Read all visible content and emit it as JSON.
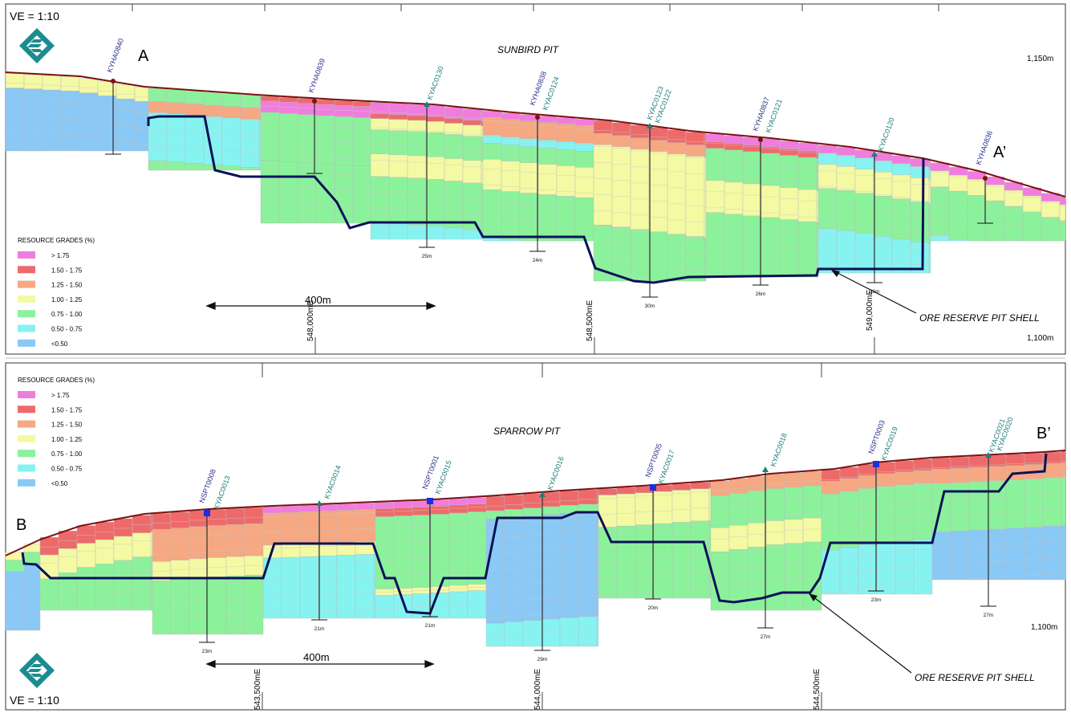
{
  "ve_label": "VE = 1:10",
  "colors": {
    "gt_1_75": "#f07ddd",
    "g_1_50_1_75": "#ee6a6a",
    "g_1_25_1_50": "#f5a882",
    "g_1_00_1_25": "#f4f9a3",
    "g_0_75_1_00": "#8bf29b",
    "g_0_50_0_75": "#86f3f1",
    "lt_0_50": "#8ac8f5",
    "topo": "#7a1212",
    "shell": "#0b1158",
    "drill_green": "#1a7f7a",
    "drill_blue": "#2a2f8c"
  },
  "legend": {
    "title": "RESOURCE GRADES (%)",
    "items": [
      {
        "label": "> 1.75",
        "color_key": "gt_1_75"
      },
      {
        "label": "1.50 - 1.75",
        "color_key": "g_1_50_1_75"
      },
      {
        "label": "1.25 - 1.50",
        "color_key": "g_1_25_1_50"
      },
      {
        "label": "1.00 - 1.25",
        "color_key": "g_1_00_1_25"
      },
      {
        "label": "0.75 - 1.00",
        "color_key": "g_0_75_1_00"
      },
      {
        "label": "0.50 - 0.75",
        "color_key": "g_0_50_0_75"
      },
      {
        "label": "<0.50",
        "color_key": "lt_0_50"
      }
    ]
  },
  "top": {
    "pit_title": "SUNBIRD PIT",
    "label_a": "A",
    "label_a_prime": "A’",
    "elev_upper": "1,150m",
    "elev_lower": "1,100m",
    "scale": "400m",
    "eastings": [
      "548,000mE",
      "548,500mE",
      "549,000mE"
    ],
    "shell_label": "ORE RESERVE PIT SHELL",
    "holes": [
      {
        "name": "KYHA0840",
        "depth": "",
        "type": "rab"
      },
      {
        "name": "KYHA0839",
        "depth": "",
        "type": "rab"
      },
      {
        "name": "KYAC0130",
        "depth": "25m",
        "type": "ac"
      },
      {
        "name": "KYHA0838",
        "depth": "24m",
        "type": "rab"
      },
      {
        "name": "KYAC0124",
        "depth": "",
        "type": "ac"
      },
      {
        "name": "KYAC0123",
        "depth": "30m",
        "type": "ac"
      },
      {
        "name": "KYAC0122",
        "depth": "",
        "type": "ac"
      },
      {
        "name": "KYHA0837",
        "depth": "26m",
        "type": "rab"
      },
      {
        "name": "KYAC0121",
        "depth": "",
        "type": "ac"
      },
      {
        "name": "KYAC0120",
        "depth": "23m",
        "type": "ac"
      },
      {
        "name": "KYHA0836",
        "depth": "",
        "type": "rab"
      }
    ]
  },
  "bottom": {
    "pit_title": "SPARROW PIT",
    "label_b": "B",
    "label_b_prime": "B’",
    "elev_lower": "1,100m",
    "scale": "400m",
    "eastings": [
      "543,500mE",
      "544,000mE",
      "544,500mE"
    ],
    "shell_label": "ORE RESERVE PIT SHELL",
    "holes": [
      {
        "name": "NSPT0008",
        "depth": "23m"
      },
      {
        "name": "KYAC0013",
        "depth": ""
      },
      {
        "name": "KYAC0014",
        "depth": "21m"
      },
      {
        "name": "NSPT0001",
        "depth": "21m"
      },
      {
        "name": "KYAC0015",
        "depth": ""
      },
      {
        "name": "KYAC0016",
        "depth": "29m"
      },
      {
        "name": "NSPT0005",
        "depth": "20m"
      },
      {
        "name": "KYAC0017",
        "depth": ""
      },
      {
        "name": "KYAC0018",
        "depth": "27m"
      },
      {
        "name": "NSPT0003",
        "depth": "23m"
      },
      {
        "name": "KYAC0019",
        "depth": ""
      },
      {
        "name": "KYAC0021",
        "depth": "27m"
      },
      {
        "name": "KYAC0020",
        "depth": ""
      }
    ]
  }
}
